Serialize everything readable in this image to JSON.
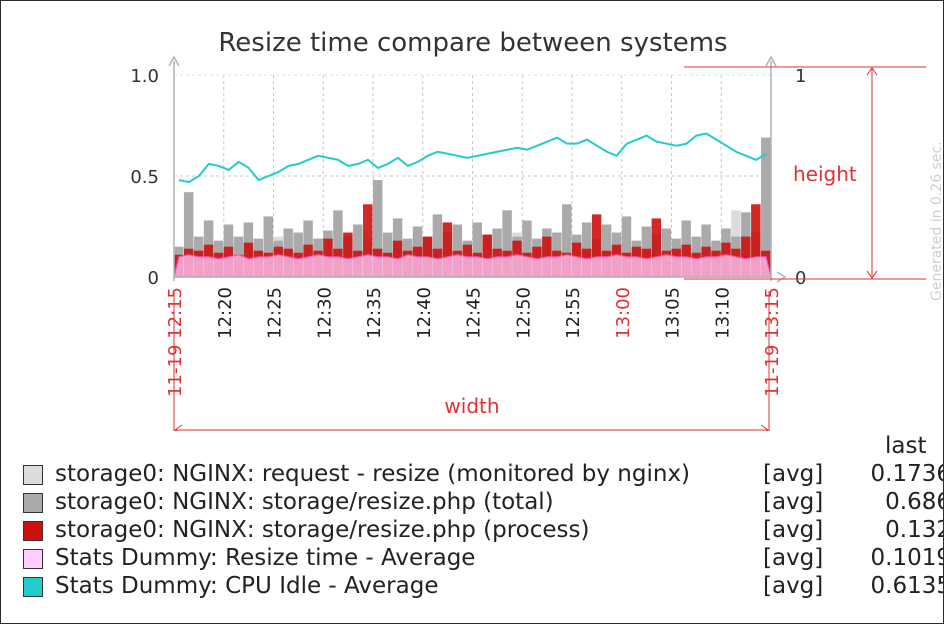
{
  "chart_data": {
    "type": "line",
    "title": "Resize time compare between systems",
    "y_left": {
      "ticks": [
        "1.0",
        "0.5",
        "0"
      ],
      "ylim": [
        0,
        1.0
      ]
    },
    "y_right": {
      "ticks": [
        "1",
        "0"
      ],
      "ylim": [
        0,
        1
      ]
    },
    "x_ticks": [
      {
        "label": "11-19 12:15",
        "minute": 0,
        "highlight": true
      },
      {
        "label": "12:20",
        "minute": 5
      },
      {
        "label": "12:25",
        "minute": 10
      },
      {
        "label": "12:30",
        "minute": 15
      },
      {
        "label": "12:35",
        "minute": 20
      },
      {
        "label": "12:40",
        "minute": 25
      },
      {
        "label": "12:45",
        "minute": 30
      },
      {
        "label": "12:50",
        "minute": 35
      },
      {
        "label": "12:55",
        "minute": 40
      },
      {
        "label": "13:00",
        "minute": 45,
        "highlight": true
      },
      {
        "label": "13:05",
        "minute": 50
      },
      {
        "label": "13:10",
        "minute": 55
      },
      {
        "label": "11-19 13:15",
        "minute": 60,
        "highlight": true
      }
    ],
    "x_range_minutes": [
      0,
      60
    ],
    "grid": true,
    "series": [
      {
        "name": "storage0: NGINX: request - resize (monitored by nginx)",
        "func": "[avg]",
        "last": "0.1736",
        "color": "#dcdcdc",
        "draw": "bars",
        "values": [
          0.12,
          0.16,
          0.1,
          0.18,
          0.13,
          0.22,
          0.11,
          0.15,
          0.17,
          0.12,
          0.2,
          0.14,
          0.16,
          0.13,
          0.19,
          0.1,
          0.15,
          0.18,
          0.12,
          0.21,
          0.14,
          0.17,
          0.11,
          0.16,
          0.19,
          0.13,
          0.15,
          0.2,
          0.12,
          0.17,
          0.14,
          0.18,
          0.11,
          0.16,
          0.22,
          0.13,
          0.15,
          0.19,
          0.12,
          0.17,
          0.14,
          0.2,
          0.16,
          0.11,
          0.18,
          0.13,
          0.15,
          0.21,
          0.12,
          0.16,
          0.14,
          0.19,
          0.13,
          0.17,
          0.15,
          0.12,
          0.33,
          0.16,
          0.14,
          0.17
        ]
      },
      {
        "name": "storage0: NGINX: storage/resize.php (total)",
        "func": "[avg]",
        "last": "0.686",
        "color": "#aaaaaa",
        "draw": "bars",
        "values": [
          0.15,
          0.42,
          0.2,
          0.28,
          0.18,
          0.26,
          0.2,
          0.27,
          0.19,
          0.3,
          0.18,
          0.24,
          0.22,
          0.28,
          0.19,
          0.23,
          0.33,
          0.2,
          0.26,
          0.18,
          0.48,
          0.22,
          0.29,
          0.19,
          0.25,
          0.2,
          0.31,
          0.22,
          0.26,
          0.18,
          0.27,
          0.21,
          0.24,
          0.33,
          0.2,
          0.28,
          0.19,
          0.24,
          0.22,
          0.36,
          0.21,
          0.27,
          0.19,
          0.26,
          0.22,
          0.3,
          0.18,
          0.25,
          0.21,
          0.24,
          0.19,
          0.28,
          0.2,
          0.26,
          0.18,
          0.24,
          0.2,
          0.32,
          0.22,
          0.69
        ]
      },
      {
        "name": "storage0: NGINX: storage/resize.php (process)",
        "func": "[avg]",
        "last": "0.132",
        "color": "#cc1111",
        "draw": "bars",
        "values": [
          0.11,
          0.14,
          0.13,
          0.16,
          0.12,
          0.15,
          0.11,
          0.17,
          0.13,
          0.12,
          0.15,
          0.14,
          0.12,
          0.16,
          0.13,
          0.19,
          0.14,
          0.22,
          0.13,
          0.36,
          0.14,
          0.12,
          0.18,
          0.13,
          0.15,
          0.2,
          0.14,
          0.27,
          0.13,
          0.16,
          0.12,
          0.21,
          0.14,
          0.13,
          0.18,
          0.12,
          0.15,
          0.2,
          0.13,
          0.12,
          0.17,
          0.14,
          0.31,
          0.13,
          0.16,
          0.12,
          0.15,
          0.14,
          0.29,
          0.13,
          0.14,
          0.16,
          0.12,
          0.15,
          0.13,
          0.17,
          0.14,
          0.2,
          0.36,
          0.13
        ]
      },
      {
        "name": "Stats Dummy: Resize time - Average",
        "func": "[avg]",
        "last": "0.1019",
        "color": "#ffccff",
        "draw": "area",
        "values": [
          0.1,
          0.11,
          0.1,
          0.1,
          0.09,
          0.1,
          0.11,
          0.09,
          0.1,
          0.1,
          0.11,
          0.1,
          0.09,
          0.1,
          0.11,
          0.1,
          0.1,
          0.09,
          0.1,
          0.11,
          0.1,
          0.1,
          0.09,
          0.11,
          0.1,
          0.1,
          0.09,
          0.1,
          0.11,
          0.1,
          0.1,
          0.09,
          0.1,
          0.1,
          0.11,
          0.1,
          0.09,
          0.1,
          0.1,
          0.11,
          0.1,
          0.09,
          0.1,
          0.1,
          0.11,
          0.1,
          0.1,
          0.09,
          0.1,
          0.11,
          0.1,
          0.1,
          0.09,
          0.1,
          0.1,
          0.11,
          0.1,
          0.09,
          0.1,
          0.1
        ]
      },
      {
        "name": "Stats Dummy: CPU Idle - Average",
        "func": "[avg]",
        "last": "0.6135",
        "color": "#22cccc",
        "draw": "line",
        "values": [
          0.48,
          0.47,
          0.5,
          0.56,
          0.55,
          0.53,
          0.57,
          0.54,
          0.48,
          0.5,
          0.52,
          0.55,
          0.56,
          0.58,
          0.6,
          0.59,
          0.58,
          0.55,
          0.56,
          0.58,
          0.54,
          0.56,
          0.59,
          0.55,
          0.57,
          0.6,
          0.62,
          0.61,
          0.6,
          0.59,
          0.6,
          0.61,
          0.62,
          0.63,
          0.64,
          0.63,
          0.65,
          0.67,
          0.69,
          0.66,
          0.66,
          0.68,
          0.65,
          0.62,
          0.6,
          0.66,
          0.68,
          0.7,
          0.67,
          0.66,
          0.65,
          0.66,
          0.7,
          0.71,
          0.68,
          0.65,
          0.62,
          0.6,
          0.58,
          0.61
        ]
      }
    ],
    "annotations": {
      "height": "height",
      "width": "width"
    }
  },
  "legend": {
    "column_header": "last"
  },
  "footer": {
    "generated": "Generated in 0.26 sec."
  }
}
